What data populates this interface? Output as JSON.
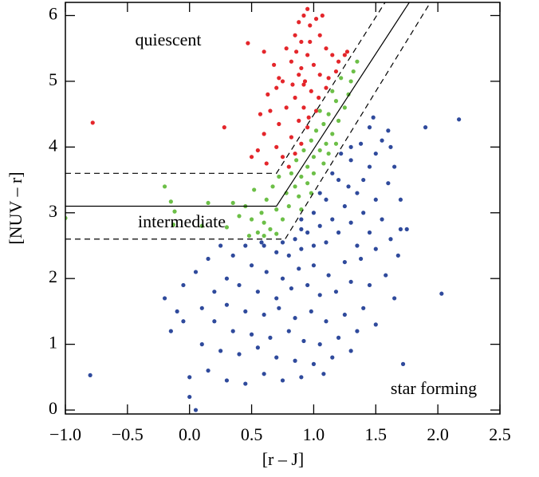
{
  "chart_data": {
    "type": "scatter",
    "x_label": "[r – J]",
    "y_label": "[NUV – r]",
    "annotations": [
      "quiescent",
      "intermediate",
      "star forming"
    ],
    "xlim": [
      -1.0,
      2.5
    ],
    "ylim": [
      -0.06,
      6.2
    ],
    "xticks": [
      {
        "value": -1.0,
        "label": "−1.0"
      },
      {
        "value": -0.5,
        "label": "−0.5"
      },
      {
        "value": 0.0,
        "label": "0.0"
      },
      0.5,
      {
        "value": 1.0,
        "label": "1.0"
      },
      1.5,
      {
        "value": 2.0,
        "label": "2.0"
      },
      2.5
    ],
    "yticks": [
      0,
      1,
      2,
      3,
      4,
      5,
      6
    ],
    "lines": [
      {
        "style": "solid",
        "x": [
          -1.0,
          0.7,
          1.77
        ],
        "y": [
          3.1,
          3.1,
          6.2
        ]
      },
      {
        "style": "dashed",
        "x": [
          -1.0,
          0.7,
          1.575
        ],
        "y": [
          3.6,
          3.6,
          6.2
        ]
      },
      {
        "style": "dashed",
        "x": [
          -1.0,
          0.77,
          1.94
        ],
        "y": [
          2.6,
          2.6,
          6.2
        ]
      }
    ],
    "series": [
      {
        "color": "#e4262b",
        "x": [
          0.95,
          0.92,
          0.88,
          0.97,
          1.02,
          0.85,
          0.9,
          1.05,
          1.1,
          0.78,
          0.82,
          0.95,
          1.0,
          1.15,
          1.2,
          0.88,
          0.93,
          1.05,
          0.75,
          0.7,
          0.98,
          1.1,
          0.85,
          0.92,
          1.02,
          0.78,
          0.65,
          0.88,
          0.95,
          0.72,
          0.6,
          0.82,
          0.9,
          0.7,
          0.55,
          0.75,
          0.85,
          0.62,
          0.8,
          0.5,
          1.12,
          1.18,
          1.25,
          1.27,
          0.68,
          0.6,
          0.63,
          0.57,
          0.97,
          1.07,
          0.47,
          0.28,
          -0.78,
          0.72,
          0.92,
          0.96,
          0.86,
          0.83,
          1.04,
          0.9
        ],
        "values": [
          6.1,
          6.0,
          5.9,
          5.85,
          5.95,
          5.7,
          5.6,
          5.7,
          5.5,
          5.5,
          5.3,
          5.4,
          5.25,
          5.4,
          5.3,
          5.1,
          5.0,
          5.1,
          5.0,
          4.9,
          4.85,
          4.9,
          4.75,
          4.6,
          4.55,
          4.6,
          4.55,
          4.4,
          4.3,
          4.35,
          4.2,
          4.15,
          4.05,
          4.0,
          3.95,
          3.85,
          3.9,
          3.75,
          3.7,
          3.85,
          5.05,
          5.15,
          5.4,
          5.45,
          5.25,
          5.45,
          4.8,
          4.5,
          5.6,
          6.0,
          5.58,
          4.3,
          4.37,
          5.05,
          4.95,
          4.45,
          5.45,
          4.95,
          4.75,
          5.2
        ]
      },
      {
        "color": "#6cbf47",
        "x": [
          0.55,
          0.6,
          0.65,
          0.7,
          0.5,
          0.58,
          0.45,
          0.62,
          0.7,
          0.75,
          0.8,
          0.52,
          0.67,
          0.78,
          0.85,
          0.72,
          0.82,
          0.9,
          0.95,
          0.86,
          1.0,
          1.05,
          0.92,
          1.1,
          0.98,
          1.15,
          1.02,
          1.08,
          1.2,
          1.12,
          1.25,
          1.05,
          1.18,
          1.28,
          1.15,
          1.3,
          1.22,
          1.35,
          1.32,
          0.88,
          0.95,
          1.08,
          1.12,
          0.6,
          0.4,
          0.35,
          0.3,
          -0.2,
          -0.15,
          0.15,
          -1.0,
          -0.12,
          0.1,
          -0.13,
          0.48,
          0.9,
          1.0,
          1.18,
          0.98
        ],
        "values": [
          2.7,
          2.65,
          2.75,
          2.68,
          2.9,
          3.0,
          3.1,
          3.2,
          3.05,
          2.9,
          3.1,
          3.35,
          3.4,
          3.3,
          3.4,
          3.55,
          3.6,
          3.55,
          3.7,
          3.8,
          3.85,
          3.95,
          3.95,
          4.05,
          4.1,
          4.2,
          4.25,
          4.35,
          4.4,
          4.5,
          4.6,
          4.55,
          4.7,
          4.8,
          4.85,
          5.0,
          5.05,
          5.3,
          5.15,
          3.25,
          3.45,
          3.75,
          3.9,
          2.85,
          2.95,
          3.15,
          2.78,
          3.4,
          3.17,
          3.15,
          2.92,
          3.02,
          2.8,
          2.82,
          2.65,
          3.05,
          3.6,
          4.05,
          3.3
        ]
      },
      {
        "color": "#2f4a9c",
        "x": [
          0.75,
          0.85,
          0.95,
          1.05,
          1.15,
          1.25,
          1.35,
          1.4,
          1.45,
          1.5,
          1.55,
          1.6,
          1.3,
          1.38,
          1.45,
          1.2,
          1.1,
          1.0,
          0.9,
          1.28,
          0.6,
          0.7,
          0.8,
          0.9,
          1.0,
          1.1,
          1.2,
          1.3,
          1.4,
          1.5,
          1.6,
          1.65,
          1.55,
          1.45,
          1.35,
          0.5,
          0.62,
          0.75,
          0.88,
          1.0,
          1.12,
          1.25,
          1.38,
          1.5,
          1.62,
          1.7,
          1.68,
          0.4,
          0.55,
          0.7,
          0.82,
          0.95,
          1.05,
          1.18,
          1.3,
          1.45,
          1.58,
          1.65,
          0.3,
          0.45,
          0.6,
          0.72,
          0.85,
          0.98,
          1.1,
          1.25,
          1.4,
          1.5,
          0.2,
          0.35,
          0.5,
          0.65,
          0.8,
          0.92,
          1.05,
          1.2,
          1.35,
          0.1,
          0.25,
          0.4,
          0.55,
          0.7,
          0.85,
          1.0,
          1.15,
          1.3,
          0.0,
          0.15,
          0.3,
          0.45,
          0.6,
          0.75,
          0.9,
          1.08,
          -0.15,
          -0.1,
          -0.2,
          -0.05,
          0.05,
          0.15,
          0.25,
          0.35,
          0.2,
          0.1,
          -0.05,
          2.17,
          1.9,
          2.03,
          1.72,
          -0.8,
          0.05,
          0.0,
          1.75,
          1.7,
          1.48,
          1.62,
          1.3,
          0.9,
          1.05,
          1.15,
          1.22,
          0.45,
          0.3,
          0.58
        ],
        "values": [
          2.55,
          2.6,
          2.7,
          2.8,
          2.9,
          3.1,
          3.3,
          3.5,
          3.7,
          3.9,
          4.1,
          4.25,
          3.8,
          4.05,
          4.3,
          3.5,
          3.2,
          3.0,
          2.75,
          3.4,
          2.5,
          2.4,
          2.35,
          2.45,
          2.5,
          2.55,
          2.7,
          2.85,
          3.0,
          3.2,
          3.45,
          3.7,
          2.9,
          2.7,
          2.5,
          2.2,
          2.1,
          2.0,
          2.15,
          2.2,
          2.05,
          2.25,
          2.3,
          2.45,
          2.6,
          2.75,
          2.35,
          1.9,
          1.8,
          1.7,
          1.85,
          1.9,
          1.75,
          1.8,
          1.95,
          1.9,
          2.05,
          1.7,
          1.6,
          1.5,
          1.45,
          1.55,
          1.4,
          1.5,
          1.35,
          1.45,
          1.55,
          1.3,
          1.35,
          1.2,
          1.15,
          1.1,
          1.2,
          1.05,
          1.0,
          1.1,
          1.2,
          1.0,
          0.9,
          0.85,
          0.95,
          0.8,
          0.75,
          0.7,
          0.8,
          0.9,
          0.5,
          0.6,
          0.45,
          0.4,
          0.55,
          0.45,
          0.5,
          0.55,
          1.2,
          1.5,
          1.7,
          1.9,
          2.1,
          2.3,
          2.5,
          2.35,
          1.8,
          1.55,
          1.35,
          4.42,
          4.3,
          1.77,
          0.7,
          0.53,
          0.0,
          0.2,
          2.75,
          3.2,
          4.45,
          4.0,
          4.0,
          2.9,
          3.3,
          3.6,
          3.9,
          2.5,
          2.0,
          2.55
        ]
      }
    ]
  }
}
